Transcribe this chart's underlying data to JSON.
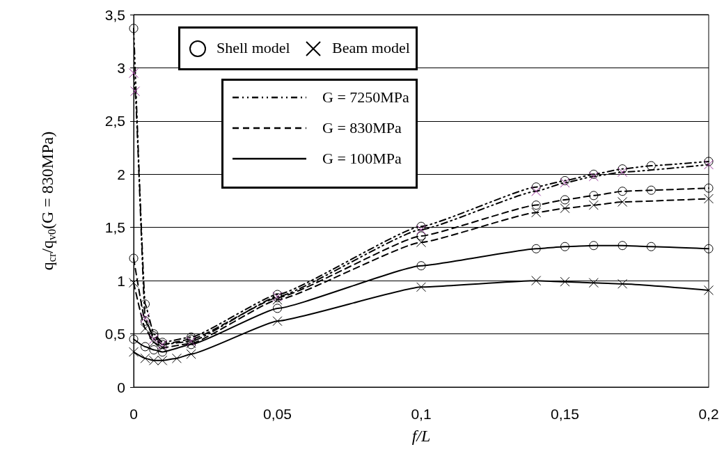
{
  "chart_data": {
    "type": "line",
    "xlabel": "f/L",
    "ylabel": "q$_{cr}$/q$_{v0}$(G = 830MPa)",
    "xlim": [
      0,
      0.2
    ],
    "xticks": [
      0,
      {
        "value": 0.05,
        "label": "0,05"
      },
      {
        "value": 0.1,
        "label": "0,1"
      },
      {
        "value": 0.15,
        "label": "0,15"
      },
      {
        "value": 0.2,
        "label": "0,2"
      }
    ],
    "ylim": [
      0,
      3.5
    ],
    "yticks": [
      0,
      {
        "value": 0.5,
        "label": "0,5"
      },
      1,
      {
        "value": 1.5,
        "label": "1,5"
      },
      2,
      {
        "value": 2.5,
        "label": "2,5"
      },
      3,
      {
        "value": 3.5,
        "label": "3,5"
      }
    ],
    "grid": "y",
    "annotations": [
      "Shell model",
      "Beam model",
      "G = 7250MPa",
      "G = 830MPa",
      "G = 100MPa"
    ],
    "series": [
      {
        "color": "#000000",
        "marker": "circle",
        "line_style": "dotted",
        "x": [
          0,
          0.004,
          0.007,
          0.01,
          0.02,
          0.05,
          0.1,
          0.14,
          0.15,
          0.16,
          0.17,
          0.18,
          0.2
        ],
        "values": [
          3.37,
          0.78,
          0.5,
          0.42,
          0.47,
          0.87,
          1.51,
          1.88,
          1.94,
          2.0,
          2.05,
          2.08,
          2.12
        ]
      },
      {
        "color": "#993399",
        "marker": "cross",
        "line_style": "dotted",
        "x": [
          0,
          0.0005,
          0.004,
          0.007,
          0.01,
          0.02,
          0.05,
          0.1,
          0.14,
          0.15,
          0.16,
          0.17,
          0.2
        ],
        "values": [
          2.95,
          2.78,
          0.65,
          0.45,
          0.4,
          0.43,
          0.85,
          1.48,
          1.84,
          1.92,
          1.98,
          2.02,
          2.09
        ]
      },
      {
        "color": "#000000",
        "marker": "circle",
        "line_style": "dashed",
        "x": [
          0,
          0.004,
          0.007,
          0.01,
          0.02,
          0.05,
          0.1,
          0.14,
          0.15,
          0.16,
          0.17,
          0.18,
          0.2
        ],
        "values": [
          1.21,
          0.62,
          0.48,
          0.4,
          0.45,
          0.84,
          1.42,
          1.71,
          1.76,
          1.8,
          1.84,
          1.85,
          1.87
        ]
      },
      {
        "color": "#000000",
        "marker": "cross",
        "line_style": "dashed",
        "x": [
          0,
          0.004,
          0.007,
          0.01,
          0.02,
          0.05,
          0.1,
          0.14,
          0.15,
          0.16,
          0.17,
          0.2
        ],
        "values": [
          0.98,
          0.55,
          0.42,
          0.37,
          0.41,
          0.82,
          1.36,
          1.64,
          1.68,
          1.71,
          1.74,
          1.77
        ]
      },
      {
        "color": "#000000",
        "marker": "circle",
        "line_style": "solid",
        "x": [
          0,
          0.004,
          0.007,
          0.01,
          0.02,
          0.05,
          0.1,
          0.14,
          0.15,
          0.16,
          0.17,
          0.18,
          0.2
        ],
        "values": [
          0.45,
          0.38,
          0.35,
          0.33,
          0.4,
          0.74,
          1.14,
          1.3,
          1.32,
          1.33,
          1.33,
          1.32,
          1.3
        ]
      },
      {
        "color": "#000000",
        "marker": "cross",
        "line_style": "solid",
        "x": [
          0,
          0.004,
          0.007,
          0.01,
          0.015,
          0.02,
          0.05,
          0.1,
          0.14,
          0.15,
          0.16,
          0.17,
          0.2
        ],
        "values": [
          0.33,
          0.27,
          0.25,
          0.25,
          0.27,
          0.31,
          0.62,
          0.94,
          1.0,
          0.99,
          0.98,
          0.97,
          0.91
        ]
      }
    ]
  }
}
